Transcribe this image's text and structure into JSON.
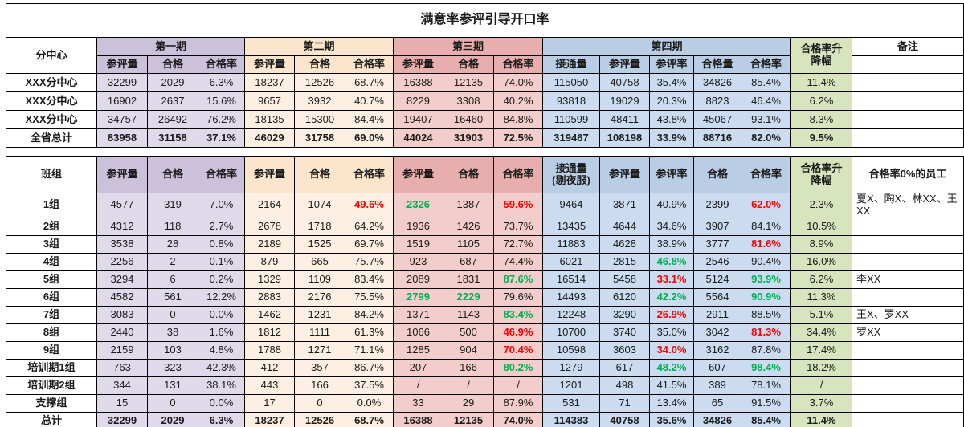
{
  "title": "满意率参评引导开口率",
  "colors": {
    "red": "#FF0000",
    "green": "#00B050",
    "purple_h": "#CCC1DB",
    "purple_b": "#DFD9E9",
    "peach_h": "#FBE5CD",
    "peach_b": "#FDF0E3",
    "pink_h": "#E8AEAD",
    "pink_b": "#F2CDCC",
    "blue_h": "#B9CDE5",
    "blue_b": "#CBDCF0",
    "green_bg": "#D7E4BD"
  },
  "section1": {
    "corner": "分中心",
    "periods": [
      {
        "label": "第一期",
        "cols": [
          "参评量",
          "合格",
          "合格率"
        ],
        "bg": "purple_h"
      },
      {
        "label": "第二期",
        "cols": [
          "参评量",
          "合格",
          "合格率"
        ],
        "bg": "peach_h"
      },
      {
        "label": "第三期",
        "cols": [
          "参评量",
          "合格",
          "合格率"
        ],
        "bg": "pink_h"
      },
      {
        "label": "第四期",
        "cols": [
          "接通量",
          "参评量",
          "参评率",
          "合格量",
          "合格率"
        ],
        "bg": "blue_h"
      }
    ],
    "updown_header": "合格率升\n降幅",
    "remark_header": "备注",
    "rows": [
      {
        "label": "XXX分中心",
        "cells": [
          "32299",
          "2029",
          "6.3%",
          "18237",
          "12526",
          "68.7%",
          "16388",
          "12135",
          "74.0%",
          "115050",
          "40758",
          "35.4%",
          "34826",
          "85.4%",
          "11.4%",
          ""
        ]
      },
      {
        "label": "XXX分中心",
        "cells": [
          "16902",
          "2637",
          "15.6%",
          "9657",
          "3932",
          "40.7%",
          "8229",
          "3308",
          "40.2%",
          "93818",
          "19029",
          "20.3%",
          "8823",
          "46.4%",
          "6.2%",
          ""
        ]
      },
      {
        "label": "XXX分中心",
        "cells": [
          "34757",
          "26492",
          "76.2%",
          "18135",
          "15300",
          "84.4%",
          "19407",
          "16460",
          "84.8%",
          "110599",
          "48411",
          "43.8%",
          "45067",
          "93.1%",
          "8.3%",
          ""
        ]
      },
      {
        "label": "全省总计",
        "bold": true,
        "cells": [
          "83958",
          "31158",
          "37.1%",
          "46029",
          "31758",
          "69.0%",
          "44024",
          "31903",
          "72.5%",
          "319467",
          "108198",
          "33.9%",
          "88716",
          "82.0%",
          "9.5%",
          ""
        ]
      }
    ]
  },
  "section2": {
    "headers": [
      "班组",
      "参评量",
      "合格",
      "合格率",
      "参评量",
      "合格",
      "合格率",
      "参评量",
      "合格",
      "合格率",
      "接通量\n(剔夜服)",
      "参评量",
      "参评率",
      "合格",
      "合格率",
      "合格率升\n降幅",
      "合格率0%的员工"
    ],
    "rows": [
      {
        "label": "1组",
        "cells": [
          "4577",
          "319",
          "7.0%",
          "2164",
          "1074",
          "49.6%",
          "2326",
          "1387",
          "59.6%",
          "9464",
          "3871",
          "40.9%",
          "2399",
          "62.0%",
          "2.3%",
          "夏X、陶X、林XX、王XX"
        ],
        "colors": {
          "5": "red",
          "6": "green",
          "8": "red",
          "13": "red"
        }
      },
      {
        "label": "2组",
        "cells": [
          "4312",
          "118",
          "2.7%",
          "2678",
          "1718",
          "64.2%",
          "1936",
          "1426",
          "73.7%",
          "13435",
          "4644",
          "34.6%",
          "3907",
          "84.1%",
          "10.5%",
          ""
        ],
        "colors": {}
      },
      {
        "label": "3组",
        "cells": [
          "3538",
          "28",
          "0.8%",
          "2189",
          "1525",
          "69.7%",
          "1519",
          "1105",
          "72.7%",
          "11883",
          "4628",
          "38.9%",
          "3777",
          "81.6%",
          "8.9%",
          ""
        ],
        "colors": {
          "13": "red"
        }
      },
      {
        "label": "4组",
        "cells": [
          "2256",
          "2",
          "0.1%",
          "879",
          "665",
          "75.7%",
          "923",
          "687",
          "74.4%",
          "6021",
          "2815",
          "46.8%",
          "2546",
          "90.4%",
          "16.0%",
          ""
        ],
        "colors": {
          "11": "green"
        }
      },
      {
        "label": "5组",
        "cells": [
          "3294",
          "6",
          "0.2%",
          "1329",
          "1109",
          "83.4%",
          "2089",
          "1831",
          "87.6%",
          "16514",
          "5458",
          "33.1%",
          "5124",
          "93.9%",
          "6.2%",
          "李XX"
        ],
        "colors": {
          "8": "green",
          "11": "red",
          "13": "green"
        }
      },
      {
        "label": "6组",
        "cells": [
          "4582",
          "561",
          "12.2%",
          "2883",
          "2176",
          "75.5%",
          "2799",
          "2229",
          "79.6%",
          "14493",
          "6120",
          "42.2%",
          "5564",
          "90.9%",
          "11.3%",
          ""
        ],
        "colors": {
          "6": "green",
          "7": "green",
          "11": "green",
          "13": "green"
        }
      },
      {
        "label": "7组",
        "cells": [
          "3083",
          "0",
          "0.0%",
          "1462",
          "1231",
          "84.2%",
          "1371",
          "1143",
          "83.4%",
          "12248",
          "3290",
          "26.9%",
          "2911",
          "88.5%",
          "5.1%",
          "王X、罗XX"
        ],
        "colors": {
          "8": "green",
          "11": "red"
        }
      },
      {
        "label": "8组",
        "cells": [
          "2440",
          "38",
          "1.6%",
          "1812",
          "1111",
          "61.3%",
          "1066",
          "500",
          "46.9%",
          "10700",
          "3740",
          "35.0%",
          "3042",
          "81.3%",
          "34.4%",
          "罗XX"
        ],
        "colors": {
          "8": "red",
          "13": "red"
        }
      },
      {
        "label": "9组",
        "cells": [
          "2159",
          "103",
          "4.8%",
          "1788",
          "1271",
          "71.1%",
          "1285",
          "904",
          "70.4%",
          "10598",
          "3603",
          "34.0%",
          "3162",
          "87.8%",
          "17.4%",
          ""
        ],
        "colors": {
          "8": "red",
          "11": "red"
        }
      },
      {
        "label": "培训期1组",
        "cells": [
          "763",
          "323",
          "42.3%",
          "412",
          "357",
          "86.7%",
          "207",
          "166",
          "80.2%",
          "1279",
          "617",
          "48.2%",
          "607",
          "98.4%",
          "18.2%",
          ""
        ],
        "colors": {
          "8": "green",
          "11": "green",
          "13": "green"
        }
      },
      {
        "label": "培训期2组",
        "cells": [
          "344",
          "131",
          "38.1%",
          "443",
          "166",
          "37.5%",
          "/",
          "/",
          "/",
          "1201",
          "498",
          "41.5%",
          "389",
          "78.1%",
          "/",
          ""
        ],
        "colors": {}
      },
      {
        "label": "支撑组",
        "cells": [
          "15",
          "0",
          "0.0%",
          "17",
          "0",
          "0.0%",
          "33",
          "29",
          "87.9%",
          "531",
          "71",
          "13.4%",
          "65",
          "91.5%",
          "3.7%",
          ""
        ],
        "colors": {}
      },
      {
        "label": "总计",
        "bold": true,
        "cells": [
          "32299",
          "2029",
          "6.3%",
          "18237",
          "12526",
          "68.7%",
          "16388",
          "12135",
          "74.0%",
          "114383",
          "40758",
          "35.6%",
          "34826",
          "85.4%",
          "11.4%",
          ""
        ],
        "colors": {}
      }
    ]
  }
}
